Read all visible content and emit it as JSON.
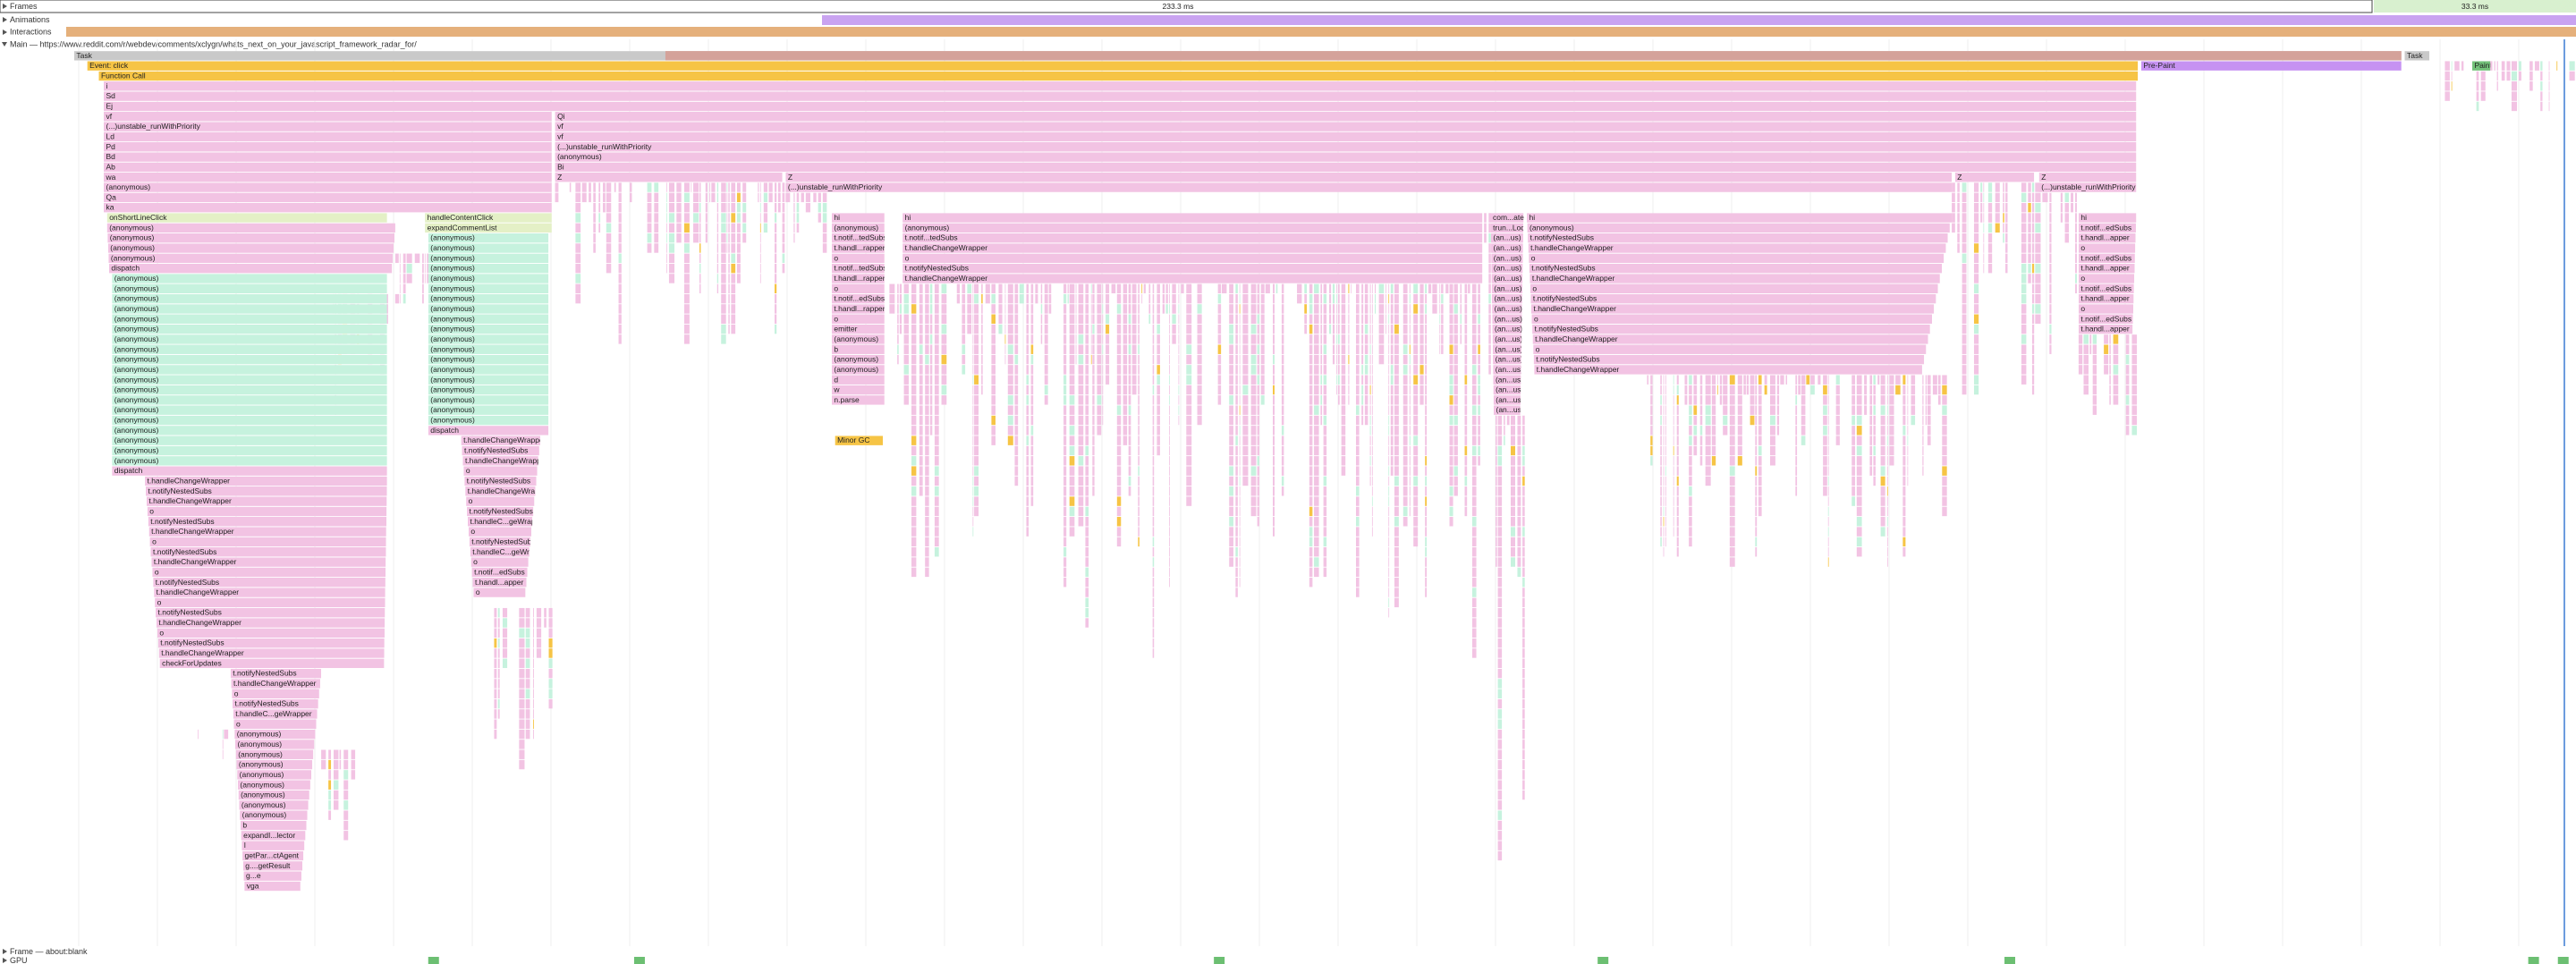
{
  "tracks": {
    "frames": "Frames",
    "frame_durations": [
      "233.3 ms",
      "33.3 ms"
    ],
    "animations": "Animations",
    "interactions": "Interactions",
    "main": "Main — https://www.reddit.com/r/webdev/comments/xclygn/whats_next_on_your_javascript_framework_radar_for/",
    "frame_bottom": "Frame — about:blank",
    "gpu": "GPU"
  },
  "flame": [
    [
      "Task"
    ],
    [
      "Task"
    ],
    [
      "Event: click"
    ],
    [
      "Pre-Paint"
    ],
    [
      "Function Call"
    ],
    [
      "i",
      "Sd",
      "Ej"
    ],
    [
      "vf",
      "(...)unstable_runWithPriority",
      "Ld",
      "Pd",
      "Bd",
      "Ab",
      "wa",
      "(anonymous)",
      "Qa",
      "ka"
    ],
    [
      "Qi",
      "vf",
      "vf",
      "(...)unstable_runWithPriority",
      "(anonymous)",
      "Bi"
    ],
    [
      "Z"
    ],
    [
      "Z",
      "(...)unstable_runWithPriority"
    ],
    [
      "Z"
    ],
    [
      "Z",
      "(...)unstable_runWithPriority"
    ],
    [
      "onShortLineClick"
    ],
    [
      "(anonymous)",
      "(anonymous)",
      "(anonymous)",
      "(anonymous)",
      "dispatch"
    ],
    [
      "(anonymous)",
      "(anonymous)",
      "(anonymous)",
      "(anonymous)",
      "(anonymous)",
      "(anonymous)",
      "(anonymous)",
      "(anonymous)",
      "(anonymous)",
      "(anonymous)",
      "(anonymous)",
      "(anonymous)",
      "(anonymous)",
      "(anonymous)",
      "(anonymous)",
      "(anonymous)",
      "(anonymous)",
      "(anonymous)",
      "(anonymous)"
    ],
    [
      "dispatch"
    ],
    [
      "t.handleChangeWrapper",
      "t.notifyNestedSubs",
      "t.handleChangeWrapper",
      "o",
      "t.notifyNestedSubs",
      "t.handleChangeWrapper",
      "o",
      "t.notifyNestedSubs",
      "t.handleChangeWrapper",
      "o",
      "t.notifyNestedSubs",
      "t.handleChangeWrapper",
      "o",
      "t.notifyNestedSubs",
      "t.handleChangeWrapper",
      "o",
      "t.notifyNestedSubs",
      "t.handleChangeWrapper",
      "checkForUpdates"
    ],
    [
      "t.notifyNestedSubs",
      "t.handleChangeWrapper",
      "o",
      "t.notifyNestedSubs",
      "t.handleC...geWrapper",
      "o",
      "(anonymous)",
      "(anonymous)",
      "(anonymous)",
      "(anonymous)",
      "(anonymous)",
      "(anonymous)",
      "(anonymous)",
      "(anonymous)",
      "(anonymous)",
      "b",
      "expandI...lector",
      "l",
      "getPar...ctAgent",
      "g....getResult",
      "g...e",
      "vga"
    ],
    [
      "handleContentClick",
      "expandCommentList"
    ],
    [
      "(anonymous)",
      "(anonymous)",
      "(anonymous)",
      "(anonymous)",
      "(anonymous)",
      "(anonymous)",
      "(anonymous)",
      "(anonymous)",
      "(anonymous)",
      "(anonymous)",
      "(anonymous)",
      "(anonymous)",
      "(anonymous)",
      "(anonymous)",
      "(anonymous)",
      "(anonymous)",
      "(anonymous)",
      "(anonymous)",
      "(anonymous)"
    ],
    [
      "dispatch"
    ],
    [
      "t.handleChangeWrapper",
      "t.notifyNestedSubs",
      "t.handleChangeWrapper",
      "o",
      "t.notifyNestedSubs",
      "t.handleChangeWrapper",
      "o",
      "t.notifyNestedSubs",
      "t.handleC...geWrapper",
      "o",
      "t.notifyNestedSubs",
      "t.handleC...geWrapper",
      "o",
      "t.notif...edSubs",
      "t.handl...apper",
      "o"
    ],
    [
      "hi",
      "(anonymous)",
      "t.notif...tedSubs",
      "t.handl...rapper",
      "o",
      "t.notif...tedSubs",
      "t.handl...rapper",
      "o",
      "t.notif...edSubs",
      "t.handl...rapper",
      "o",
      "emitter",
      "(anonymous)",
      "b",
      "(anonymous)",
      "(anonymous)",
      "d",
      "w",
      "n.parse"
    ],
    [
      "Minor GC"
    ],
    [
      "hi",
      "(anonymous)",
      "t.notif...tedSubs",
      "t.handleChangeWrapper",
      "o",
      "t.notifyNestedSubs",
      "t.handleChangeWrapper"
    ],
    [
      "com...ate",
      "trun...Lod",
      "(an...us)",
      "(an...us)",
      "(an...us)",
      "(an...us)",
      "(an...us)",
      "(an...us)",
      "(an...us)",
      "(an...us)",
      "(an...us)",
      "(an...us)",
      "(an...us)",
      "(an...us)",
      "(an...us)",
      "(an...us)",
      "(an...us)",
      "(an...us)",
      "(an...us)",
      "(an...us)"
    ],
    [
      "hi",
      "(anonymous)",
      "t.notifyNestedSubs",
      "t.handleChangeWrapper",
      "o",
      "t.notifyNestedSubs",
      "t.handleChangeWrapper",
      "o",
      "t.notifyNestedSubs",
      "t.handleChangeWrapper",
      "o",
      "t.notifyNestedSubs",
      "t.handleChangeWrapper",
      "o",
      "t.notifyNestedSubs",
      "t.handleChangeWrapper"
    ],
    [
      "hi",
      "t.notif...edSubs",
      "t.handl...apper",
      "o",
      "t.notif...edSubs",
      "t.handl...apper",
      "o",
      "t.notif...edSubs",
      "t.handl...apper",
      "o",
      "t.notif...edSubs",
      "t.handl...apper"
    ],
    [
      "Paint"
    ]
  ]
}
